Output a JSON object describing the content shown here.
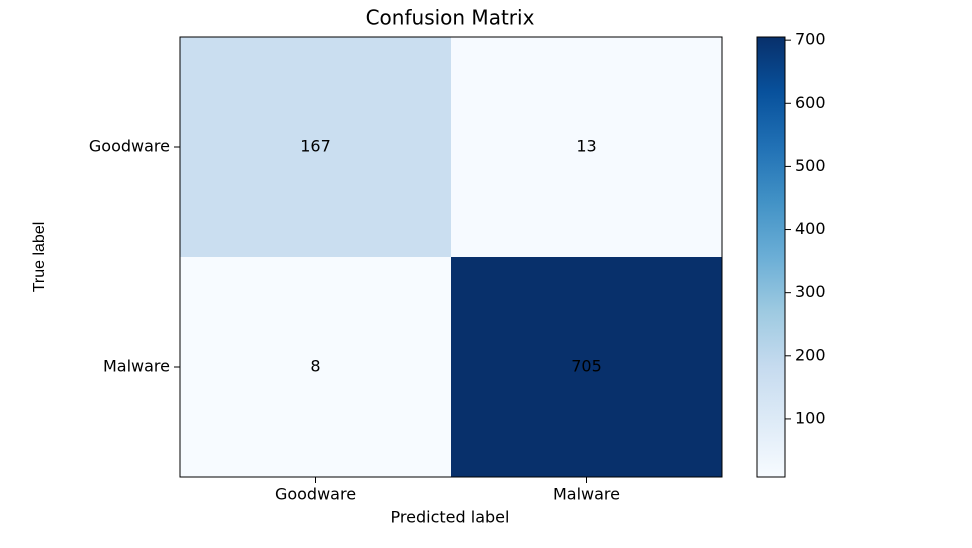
{
  "chart_data": {
    "type": "heatmap",
    "title": "Confusion Matrix",
    "x_categories": [
      "Goodware",
      "Malware"
    ],
    "y_categories": [
      "Goodware",
      "Malware"
    ],
    "values": [
      [
        167,
        13
      ],
      [
        8,
        705
      ]
    ],
    "xlabel": "Predicted label",
    "ylabel": "True label",
    "colormap": "Blues",
    "colorbar_lim": [
      8,
      705
    ],
    "colorbar_ticks": [
      100,
      200,
      300,
      400,
      500,
      600,
      700
    ]
  }
}
